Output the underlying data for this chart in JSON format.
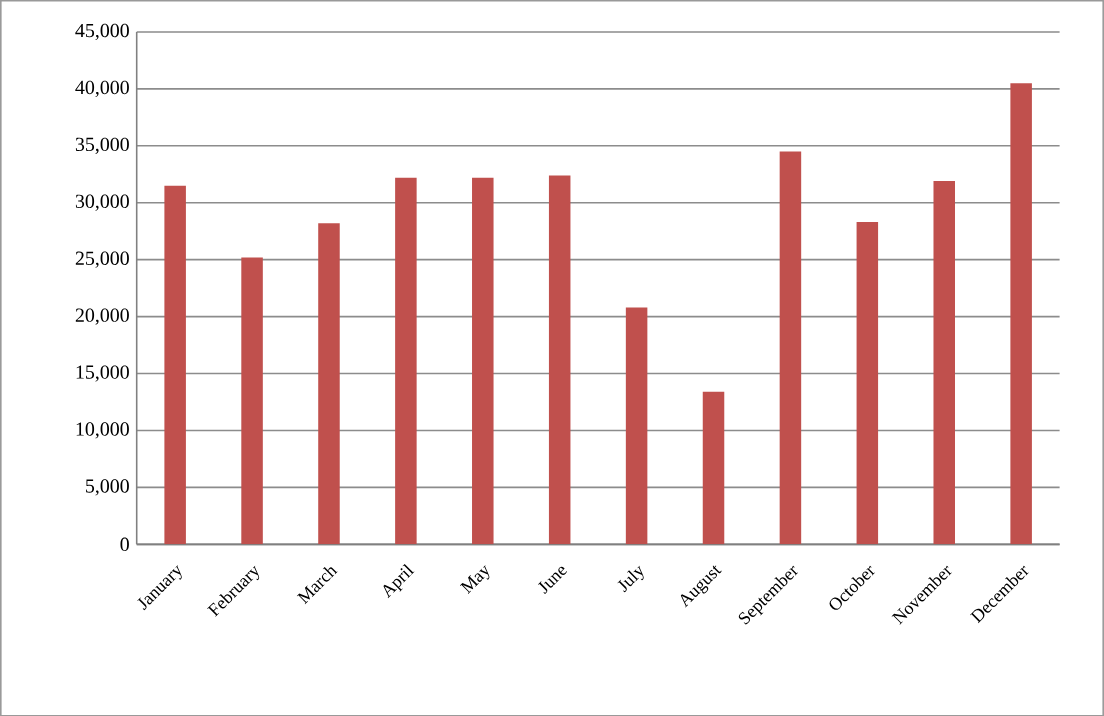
{
  "chart_data": {
    "type": "bar",
    "categories": [
      "January",
      "February",
      "March",
      "April",
      "May",
      "June",
      "July",
      "August",
      "September",
      "October",
      "November",
      "December"
    ],
    "values": [
      31500,
      25200,
      28200,
      32200,
      32200,
      32400,
      20800,
      13400,
      34500,
      28300,
      31900,
      40500
    ],
    "color": "#c0504d",
    "ylim": [
      0,
      45000
    ],
    "yticks": [
      {
        "value": 0,
        "label": "0"
      },
      {
        "value": 5000,
        "label": "5,000"
      },
      {
        "value": 10000,
        "label": "10,000"
      },
      {
        "value": 15000,
        "label": "15,000"
      },
      {
        "value": 20000,
        "label": "20,000"
      },
      {
        "value": 25000,
        "label": "25,000"
      },
      {
        "value": 30000,
        "label": "30,000"
      },
      {
        "value": 35000,
        "label": "35,000"
      },
      {
        "value": 40000,
        "label": "40,000"
      },
      {
        "value": 45000,
        "label": "45,000"
      }
    ],
    "grid": "y"
  }
}
